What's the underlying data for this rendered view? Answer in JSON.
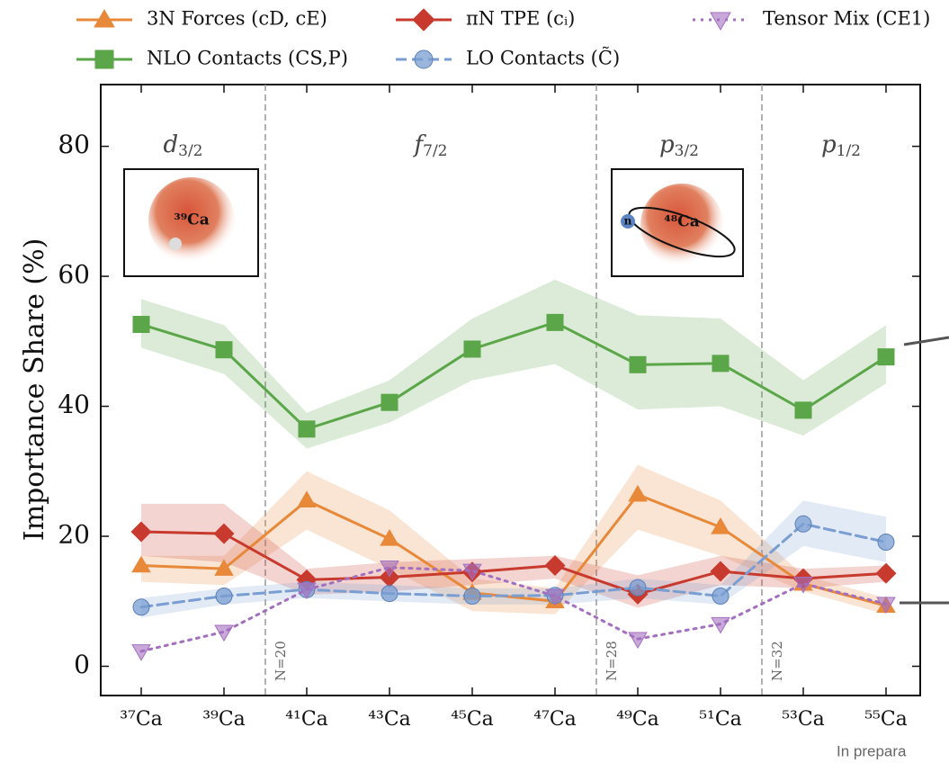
{
  "chart_data": {
    "type": "line",
    "ylabel": "Importance Share (%)",
    "categories": [
      "³⁷Ca",
      "³⁹Ca",
      "⁴¹Ca",
      "⁴³Ca",
      "⁴⁵Ca",
      "⁴⁷Ca",
      "⁴⁹Ca",
      "⁵¹Ca",
      "⁵³Ca",
      "⁵⁵Ca"
    ],
    "ylim": [
      -4.5,
      89.5
    ],
    "yticks": [
      0,
      20,
      40,
      60,
      80
    ],
    "grid": false,
    "legend": "top",
    "series": [
      {
        "name": "3N Forces (cD, cE)",
        "color": "#e8893a",
        "marker": "triangle-up",
        "linestyle": "solid",
        "values": [
          15.5,
          15,
          25.5,
          19.6,
          11.3,
          10,
          26.4,
          21.4,
          12.7,
          9.3
        ],
        "upper": [
          17,
          17,
          30,
          24,
          13.5,
          12,
          31,
          25.5,
          14,
          10.5
        ],
        "lower": [
          13,
          12.5,
          21,
          15,
          8.5,
          8,
          21,
          17,
          11.5,
          8
        ]
      },
      {
        "name": "NLO Contacts (CS,P)",
        "color": "#5aa648",
        "marker": "square",
        "linestyle": "solid",
        "values": [
          52.6,
          48.7,
          36.5,
          40.6,
          48.8,
          52.9,
          46.4,
          46.6,
          39.4,
          47.6
        ],
        "upper": [
          56.5,
          52.5,
          39,
          44,
          53.5,
          59.5,
          54,
          53.5,
          44,
          52.5
        ],
        "lower": [
          49,
          45,
          33.5,
          37.5,
          44,
          46.5,
          39.5,
          40,
          35.5,
          43.5
        ]
      },
      {
        "name": "πN TPE (cᵢ)",
        "color": "#c8392e",
        "marker": "diamond",
        "linestyle": "solid",
        "values": [
          20.7,
          20.4,
          13.3,
          13.7,
          14.5,
          15.5,
          11.1,
          14.6,
          13.5,
          14.3
        ],
        "upper": [
          25,
          25,
          15,
          16,
          16.5,
          17,
          14,
          17,
          15,
          15.5
        ],
        "lower": [
          17,
          16,
          11,
          11.5,
          12.5,
          13.5,
          9,
          12.5,
          12,
          13
        ]
      },
      {
        "name": "LO Contacts (C̃)",
        "color": "#7a9ed1",
        "marker": "circle",
        "linestyle": "dashed",
        "values": [
          9.1,
          10.8,
          11.8,
          11.2,
          10.8,
          10.9,
          12.1,
          10.8,
          21.9,
          19.1
        ],
        "upper": [
          10.5,
          12,
          13,
          12.5,
          12,
          12,
          13.5,
          12.5,
          25.5,
          23
        ],
        "lower": [
          7.5,
          9.5,
          10.5,
          10,
          9.5,
          9.5,
          10.5,
          9.5,
          18.5,
          16
        ]
      },
      {
        "name": "Tensor Mix (CE1)",
        "color": "#a36fc0",
        "marker": "triangle-down",
        "linestyle": "dotted",
        "values": [
          2.3,
          5.3,
          11.8,
          15.2,
          14.7,
          10.8,
          4.2,
          6.5,
          12.7,
          9.6
        ]
      }
    ],
    "magic_lines": [
      {
        "label": "N=20",
        "x": 1.5
      },
      {
        "label": "N=28",
        "x": 5.5
      },
      {
        "label": "N=32",
        "x": 7.5
      }
    ],
    "shells": [
      {
        "orbital": "d",
        "j": "3/2"
      },
      {
        "orbital": "f",
        "j": "7/2"
      },
      {
        "orbital": "p",
        "j": "3/2"
      },
      {
        "orbital": "p",
        "j": "1/2"
      }
    ],
    "insets": [
      {
        "nucleus": "³⁹Ca"
      },
      {
        "nucleus": "⁴⁸Ca",
        "particle": "n"
      }
    ],
    "footnote": "In prepara"
  }
}
